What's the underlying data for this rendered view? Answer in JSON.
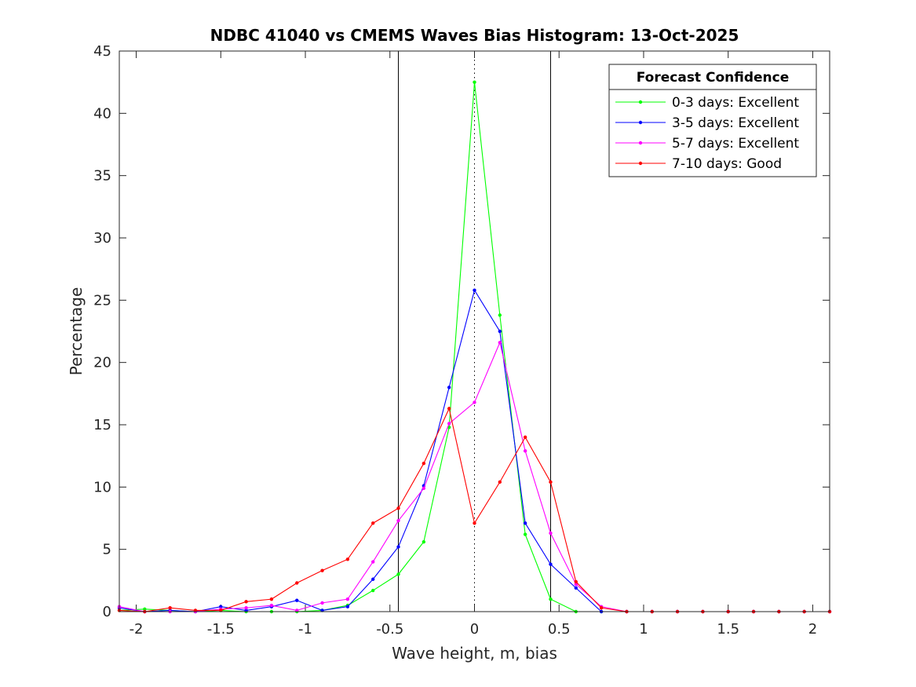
{
  "chart_data": {
    "type": "line",
    "title": "NDBC 41040 vs CMEMS Waves Bias Histogram: 13-Oct-2025",
    "xlabel": "Wave height, m, bias",
    "ylabel": "Percentage",
    "xlim": [
      -2.1,
      2.1
    ],
    "ylim": [
      0,
      45
    ],
    "xticks": [
      -2,
      -1.5,
      -1,
      -0.5,
      0,
      0.5,
      1,
      1.5,
      2
    ],
    "xtick_labels": [
      "-2",
      "-1.5",
      "-1",
      "-0.5",
      "0",
      "0.5",
      "1",
      "1.5",
      "2"
    ],
    "yticks": [
      0,
      5,
      10,
      15,
      20,
      25,
      30,
      35,
      40,
      45
    ],
    "ytick_labels": [
      "0",
      "5",
      "10",
      "15",
      "20",
      "25",
      "30",
      "35",
      "40",
      "45"
    ],
    "reference_lines": [
      {
        "x": -0.45,
        "style": "solid"
      },
      {
        "x": 0.45,
        "style": "solid"
      },
      {
        "x": 0,
        "style": "dotted"
      }
    ],
    "legend": {
      "title": "Forecast Confidence",
      "position": "top-right"
    },
    "x": [
      -2.1,
      -1.95,
      -1.8,
      -1.65,
      -1.5,
      -1.35,
      -1.2,
      -1.05,
      -0.9,
      -0.75,
      -0.6,
      -0.45,
      -0.3,
      -0.15,
      0,
      0.15,
      0.3,
      0.45,
      0.6,
      0.75,
      0.9,
      1.05,
      1.2,
      1.35,
      1.5,
      1.65,
      1.8,
      1.95,
      2.1
    ],
    "series": [
      {
        "name": "0-3 days: Excellent",
        "color": "#00ff00",
        "values": [
          0.1,
          0.2,
          0.1,
          0,
          0.1,
          0,
          0,
          0,
          0.1,
          0.5,
          1.7,
          3.0,
          5.6,
          14.8,
          42.5,
          23.8,
          6.2,
          1.0,
          0,
          0,
          0,
          0,
          0,
          0,
          0,
          0,
          0,
          0,
          0
        ]
      },
      {
        "name": "3-5 days: Excellent",
        "color": "#0000ff",
        "values": [
          0.3,
          0,
          0.1,
          0,
          0.4,
          0.1,
          0.4,
          0.9,
          0.1,
          0.4,
          2.6,
          5.2,
          10.1,
          18.0,
          25.8,
          22.5,
          7.1,
          3.8,
          1.9,
          0,
          0,
          0,
          0,
          0,
          0,
          0,
          0,
          0,
          0
        ]
      },
      {
        "name": "5-7 days: Excellent",
        "color": "#ff00ff",
        "values": [
          0.4,
          0,
          0,
          0,
          0.2,
          0.3,
          0.5,
          0.1,
          0.7,
          1.0,
          4.0,
          7.3,
          9.9,
          15.1,
          16.8,
          21.6,
          12.9,
          6.3,
          2.2,
          0.4,
          0,
          0,
          0,
          0,
          0,
          0,
          0,
          0,
          0
        ]
      },
      {
        "name": "7-10 days: Good",
        "color": "#ff0000",
        "values": [
          0.1,
          0,
          0.3,
          0.1,
          0.1,
          0.8,
          1.0,
          2.3,
          3.3,
          4.2,
          7.1,
          8.3,
          11.9,
          16.3,
          7.1,
          10.4,
          14.0,
          10.4,
          2.4,
          0.3,
          0,
          0,
          0,
          0,
          0,
          0,
          0,
          0,
          0
        ]
      }
    ]
  }
}
